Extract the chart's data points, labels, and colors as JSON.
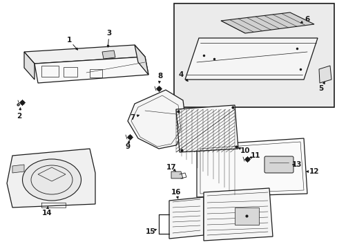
{
  "bg_color": "#ffffff",
  "line_color": "#1a1a1a",
  "gray_fill": "#e8e8e8",
  "inset_fill": "#ebebeb",
  "fig_width": 4.89,
  "fig_height": 3.6,
  "dpi": 100
}
